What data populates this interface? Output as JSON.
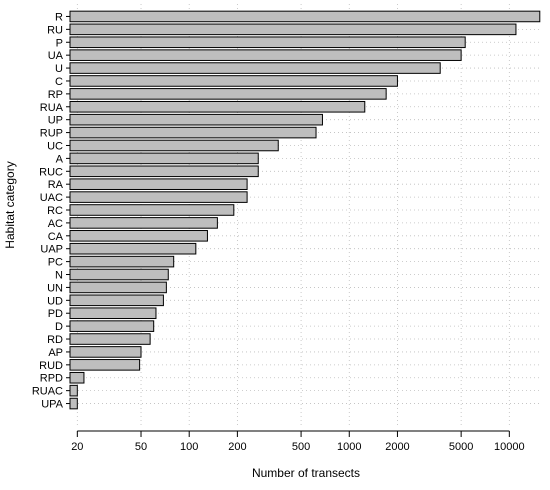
{
  "chart_data": {
    "type": "bar",
    "orientation": "horizontal",
    "xlabel": "Number of transects",
    "ylabel": "Habitat category",
    "xscale": "log",
    "xlim": [
      18,
      16000
    ],
    "xticks": [
      20,
      50,
      100,
      200,
      500,
      1000,
      2000,
      5000,
      10000
    ],
    "grid": true,
    "categories": [
      "R",
      "RU",
      "P",
      "UA",
      "U",
      "C",
      "RP",
      "RUA",
      "UP",
      "RUP",
      "UC",
      "A",
      "RUC",
      "RA",
      "UAC",
      "RC",
      "AC",
      "CA",
      "UAP",
      "PC",
      "N",
      "UN",
      "UD",
      "PD",
      "D",
      "RD",
      "AP",
      "RUD",
      "RPD",
      "RUAC",
      "UPA"
    ],
    "values": [
      15500,
      11000,
      5300,
      5000,
      3700,
      2000,
      1700,
      1250,
      680,
      620,
      360,
      270,
      270,
      230,
      230,
      190,
      150,
      130,
      110,
      80,
      74,
      72,
      69,
      62,
      60,
      57,
      50,
      49,
      22,
      20,
      20
    ]
  }
}
